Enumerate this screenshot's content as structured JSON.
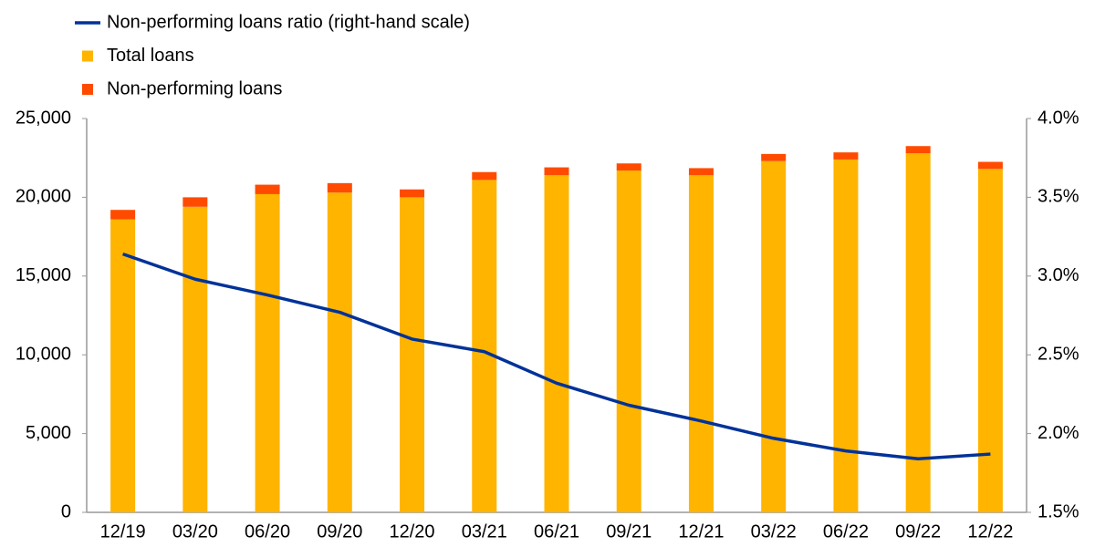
{
  "chart_data": {
    "type": "bar",
    "stacked": true,
    "categories": [
      "12/19",
      "03/20",
      "06/20",
      "09/20",
      "12/20",
      "03/21",
      "06/21",
      "09/21",
      "12/21",
      "03/22",
      "06/22",
      "09/22",
      "12/22"
    ],
    "series": [
      {
        "name": "Non-performing loans ratio (right-hand scale)",
        "type": "line",
        "axis": "y2",
        "color": "#003299",
        "values": [
          3.14,
          2.98,
          2.88,
          2.77,
          2.6,
          2.52,
          2.32,
          2.18,
          2.08,
          1.97,
          1.89,
          1.84,
          1.87
        ]
      },
      {
        "name": "Total loans",
        "type": "bar",
        "color": "#ffb400",
        "values": [
          18600,
          19400,
          20200,
          20300,
          20000,
          21100,
          21400,
          21700,
          21400,
          22300,
          22400,
          22800,
          21800
        ]
      },
      {
        "name": "Non-performing loans",
        "type": "bar",
        "color": "#ff4b00",
        "values": [
          600,
          600,
          600,
          600,
          500,
          500,
          500,
          450,
          450,
          450,
          450,
          450,
          450
        ]
      }
    ],
    "ylim": [
      0,
      25000
    ],
    "yticks": [
      0,
      {
        "value": 5000,
        "label": "5,000"
      },
      {
        "value": 10000,
        "label": "10,000"
      },
      {
        "value": 15000,
        "label": "15,000"
      },
      {
        "value": 20000,
        "label": "20,000"
      },
      {
        "value": 25000,
        "label": "25,000"
      }
    ],
    "y2lim": [
      1.5,
      4.0
    ],
    "y2ticks": [
      {
        "value": 1.5,
        "label": "1.5%"
      },
      {
        "value": 2.0,
        "label": "2.0%"
      },
      {
        "value": 2.5,
        "label": "2.5%"
      },
      {
        "value": 3.0,
        "label": "3.0%"
      },
      {
        "value": 3.5,
        "label": "3.5%"
      },
      {
        "value": 4.0,
        "label": "4.0%"
      }
    ],
    "grid": false,
    "legend": "top-left"
  }
}
